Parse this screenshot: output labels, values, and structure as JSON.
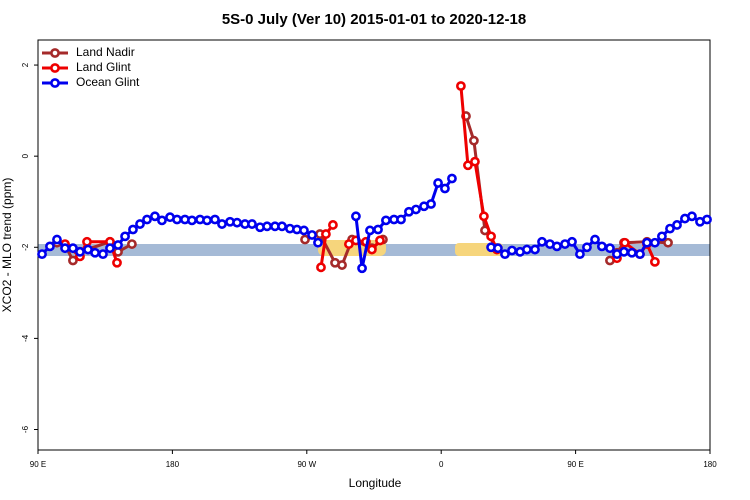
{
  "chart_data": {
    "type": "line",
    "title": "5S-0 July (Ver 10)   2015-01-01 to 2020-12-18",
    "x_label": "Longitude",
    "y_label": "XCO2 - MLO trend (ppm)",
    "xlim": [
      90,
      540
    ],
    "xticks": [
      {
        "value": 90,
        "label": "90 E"
      },
      180,
      {
        "value": 270,
        "label": "90 W"
      },
      {
        "value": 360,
        "label": "0"
      },
      {
        "value": 450,
        "label": "90 E"
      },
      {
        "value": 540,
        "label": "180"
      }
    ],
    "ylim": [
      -6.45,
      2.55
    ],
    "yticks": [
      -6,
      -4,
      -2,
      0,
      2
    ],
    "legend": "upper left",
    "series": [
      {
        "name": "Land Nadir",
        "color": "#a52a2a",
        "x": [
          102.7,
          108.1,
          113.4,
          118.1,
          138.2,
          143.6,
          152.9,
          220,
          268.8,
          278.8,
          288.9,
          293.6,
          300.3,
          313.6,
          321.0,
          340,
          376.6,
          381.9,
          389.3,
          397.3,
          450,
          473.0,
          477.7,
          482.4,
          497.8,
          511.9
        ],
        "values": [
          -1.9,
          -1.95,
          -2.29,
          -2.1,
          -1.88,
          -2.1,
          -1.93,
          null,
          -1.83,
          -1.71,
          -2.34,
          -2.39,
          -1.83,
          -2.02,
          -1.83,
          null,
          0.88,
          0.34,
          -1.63,
          -2.02,
          null,
          -2.29,
          -2.12,
          -1.9,
          -1.88,
          -1.9
        ]
      },
      {
        "name": "Land Glint",
        "color": "#ee0000",
        "x": [
          108.1,
          118.1,
          122.8,
          138.2,
          142.9,
          200,
          279.5,
          282.8,
          287.5,
          292,
          298.2,
          302.9,
          309.6,
          313.6,
          319.0,
          340,
          373.2,
          377.9,
          382.6,
          388.6,
          393.4,
          397.3,
          450,
          477.7,
          483.0,
          493.1,
          497.8,
          503.1
        ],
        "values": [
          -1.93,
          -2.2,
          -1.88,
          -1.88,
          -2.34,
          null,
          -2.44,
          -1.71,
          -1.51,
          null,
          -1.93,
          -1.85,
          -1.88,
          -2.05,
          -1.85,
          null,
          1.54,
          -0.2,
          -0.12,
          -1.32,
          -1.76,
          -2.05,
          null,
          -2.24,
          -1.9,
          -2.15,
          -1.93,
          -2.32
        ]
      },
      {
        "name": "Ocean Glint",
        "color": "#0000ee",
        "x": [
          92.7,
          98.0,
          102.7,
          108.1,
          113.4,
          118.1,
          123.5,
          128.2,
          133.5,
          138.2,
          143.6,
          148.3,
          153.6,
          158.3,
          163.0,
          168.3,
          173.0,
          178.4,
          183.1,
          188.4,
          193.1,
          198.5,
          203.2,
          208.5,
          213.2,
          218.6,
          223.3,
          228.6,
          233.3,
          238.7,
          243.4,
          248.7,
          253.4,
          258.7,
          263.4,
          268.1,
          273.5,
          277.5,
          290,
          302.9,
          307.0,
          312.3,
          317.7,
          323.0,
          328.4,
          333.1,
          338.4,
          343.1,
          348.5,
          353.2,
          357.9,
          362.5,
          367.2,
          380,
          393.4,
          398.0,
          402.7,
          407.4,
          412.8,
          417.4,
          422.8,
          427.5,
          432.8,
          437.5,
          442.9,
          447.6,
          452.9,
          457.6,
          463.0,
          467.6,
          473.0,
          477.7,
          482.4,
          487.7,
          493.1,
          497.8,
          503.1,
          507.8,
          513.2,
          517.9,
          523.2,
          527.9,
          533.3,
          538.0
        ],
        "values": [
          -2.15,
          -1.98,
          -1.83,
          -2.02,
          -2.02,
          -2.1,
          -2.05,
          -2.12,
          -2.15,
          -2.02,
          -1.95,
          -1.76,
          -1.61,
          -1.49,
          -1.39,
          -1.32,
          -1.41,
          -1.34,
          -1.39,
          -1.39,
          -1.41,
          -1.39,
          -1.41,
          -1.39,
          -1.49,
          -1.44,
          -1.46,
          -1.49,
          -1.49,
          -1.56,
          -1.54,
          -1.54,
          -1.54,
          -1.59,
          -1.61,
          -1.63,
          -1.73,
          -1.9,
          null,
          -1.32,
          -2.46,
          -1.63,
          -1.61,
          -1.41,
          -1.39,
          -1.39,
          -1.22,
          -1.17,
          -1.1,
          -1.05,
          -0.59,
          -0.71,
          -0.49,
          null,
          -2.0,
          -2.02,
          -2.15,
          -2.07,
          -2.1,
          -2.05,
          -2.05,
          -1.88,
          -1.93,
          -1.98,
          -1.93,
          -1.88,
          -2.15,
          -2.0,
          -1.83,
          -1.98,
          -2.02,
          -2.15,
          -2.1,
          -2.12,
          -2.15,
          -1.9,
          -1.9,
          -1.76,
          -1.59,
          -1.51,
          -1.37,
          -1.32,
          -1.44,
          -1.39
        ]
      }
    ]
  }
}
